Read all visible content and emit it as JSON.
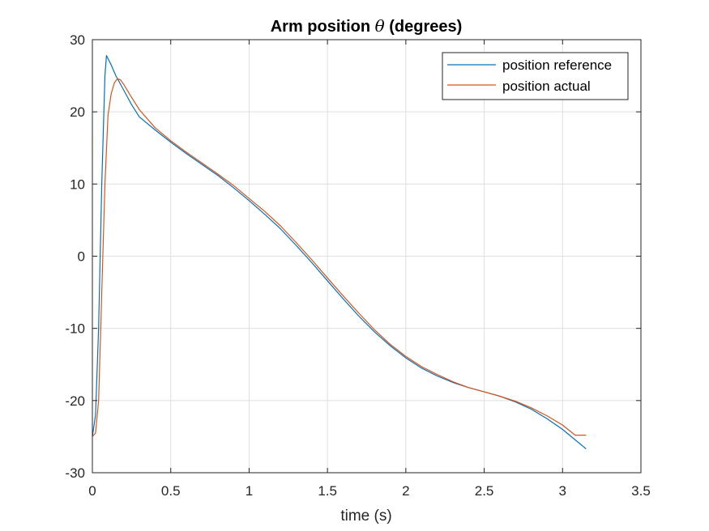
{
  "chart_data": {
    "type": "line",
    "title": "Arm position θ (degrees)",
    "title_prefix": "Arm position ",
    "title_symbol": "θ",
    "title_suffix": " (degrees)",
    "xlabel": "time (s)",
    "ylabel": "",
    "xlim": [
      0,
      3.5
    ],
    "ylim": [
      -30,
      30
    ],
    "xticks": [
      0,
      0.5,
      1,
      1.5,
      2,
      2.5,
      3,
      3.5
    ],
    "xtick_labels": [
      "0",
      "0.5",
      "1",
      "1.5",
      "2",
      "2.5",
      "3",
      "3.5"
    ],
    "yticks": [
      -30,
      -20,
      -10,
      0,
      10,
      20,
      30
    ],
    "ytick_labels": [
      "-30",
      "-20",
      "-10",
      "0",
      "10",
      "20",
      "30"
    ],
    "grid": true,
    "legend_placement": "top-right",
    "series": [
      {
        "name": "position reference",
        "color": "#0072BD",
        "x": [
          0,
          0.02,
          0.04,
          0.06,
          0.08,
          0.09,
          0.12,
          0.15,
          0.2,
          0.25,
          0.3,
          0.4,
          0.5,
          0.6,
          0.7,
          0.8,
          0.9,
          1.0,
          1.1,
          1.2,
          1.3,
          1.4,
          1.5,
          1.6,
          1.7,
          1.8,
          1.9,
          2.0,
          2.1,
          2.2,
          2.3,
          2.4,
          2.5,
          2.6,
          2.7,
          2.8,
          2.9,
          3.0,
          3.1,
          3.15
        ],
        "y": [
          -25,
          -22,
          -10,
          10,
          25,
          27.8,
          26.5,
          25,
          23,
          21,
          19.3,
          17.5,
          15.8,
          14.2,
          12.7,
          11.2,
          9.5,
          7.7,
          5.8,
          3.8,
          1.5,
          -0.9,
          -3.4,
          -5.9,
          -8.3,
          -10.5,
          -12.4,
          -14.1,
          -15.5,
          -16.6,
          -17.5,
          -18.2,
          -18.8,
          -19.4,
          -20.2,
          -21.2,
          -22.5,
          -24.0,
          -25.8,
          -26.7
        ]
      },
      {
        "name": "position actual",
        "color": "#D95319",
        "x": [
          0,
          0.02,
          0.04,
          0.06,
          0.08,
          0.1,
          0.12,
          0.14,
          0.16,
          0.18,
          0.2,
          0.25,
          0.3,
          0.4,
          0.5,
          0.6,
          0.7,
          0.8,
          0.9,
          1.0,
          1.1,
          1.2,
          1.3,
          1.4,
          1.5,
          1.6,
          1.7,
          1.8,
          1.9,
          2.0,
          2.1,
          2.2,
          2.3,
          2.4,
          2.5,
          2.6,
          2.7,
          2.8,
          2.9,
          3.0,
          3.08,
          3.1,
          3.15
        ],
        "y": [
          -25,
          -24.5,
          -20,
          -5,
          10,
          19.5,
          22.5,
          24,
          24.6,
          24.4,
          23.8,
          22,
          20.3,
          17.8,
          16.0,
          14.4,
          12.9,
          11.4,
          9.8,
          8.0,
          6.2,
          4.2,
          1.9,
          -0.5,
          -3.0,
          -5.5,
          -7.9,
          -10.2,
          -12.2,
          -13.9,
          -15.3,
          -16.4,
          -17.4,
          -18.2,
          -18.8,
          -19.4,
          -20.1,
          -21.0,
          -22.1,
          -23.4,
          -24.8,
          -24.8,
          -24.8
        ]
      }
    ]
  }
}
